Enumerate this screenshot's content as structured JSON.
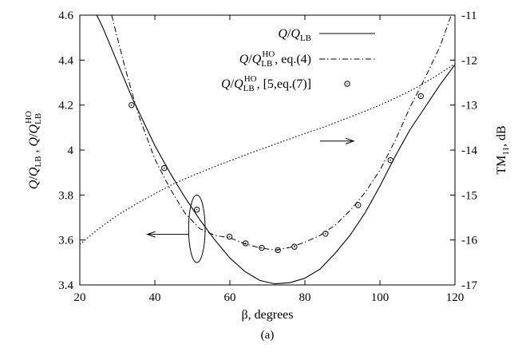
{
  "chart_data": {
    "type": "line",
    "caption": "(a)",
    "xlabel": "β, degrees",
    "ylabel_left": "Q/Q_LB , Q/Q_LB^HO",
    "ylabel_right": "TM11, dB",
    "xlim": [
      20,
      120
    ],
    "ylim_left": [
      3.4,
      4.6
    ],
    "ylim_right": [
      -17,
      -11
    ],
    "x_ticks": [
      "20",
      "40",
      "60",
      "80",
      "100",
      "120"
    ],
    "y_left_ticks": [
      "3.4",
      "3.6",
      "3.8",
      "4",
      "4.2",
      "4.4",
      "4.6"
    ],
    "y_right_ticks": [
      "-17",
      "-16",
      "-15",
      "-14",
      "-13",
      "-12",
      "-11"
    ],
    "legend_placement": "top-right",
    "grid": false,
    "series": [
      {
        "name": "Q/Q_LB",
        "axis": "left",
        "style": "solid",
        "x": [
          24.5,
          26,
          28,
          30,
          32,
          34,
          36,
          40,
          44,
          48,
          52,
          56,
          60,
          64,
          68,
          72,
          76,
          80,
          84,
          88,
          92,
          96,
          100,
          104,
          108,
          112,
          116,
          120
        ],
        "y": [
          4.6,
          4.55,
          4.47,
          4.39,
          4.31,
          4.23,
          4.16,
          4.02,
          3.9,
          3.79,
          3.69,
          3.6,
          3.52,
          3.46,
          3.42,
          3.405,
          3.41,
          3.43,
          3.47,
          3.54,
          3.62,
          3.72,
          3.84,
          3.97,
          4.09,
          4.19,
          4.29,
          4.38
        ]
      },
      {
        "name": "Q/Q_LB^HO, eq.(4)",
        "axis": "left",
        "style": "dash-dot",
        "x": [
          28.5,
          30,
          32,
          34,
          36,
          40,
          44,
          48,
          52,
          56,
          60,
          64,
          68,
          72,
          76,
          80,
          84,
          88,
          92,
          96,
          100,
          104,
          108,
          112,
          116,
          119
        ],
        "y": [
          4.6,
          4.5,
          4.37,
          4.25,
          4.14,
          3.96,
          3.83,
          3.72,
          3.65,
          3.62,
          3.61,
          3.583,
          3.565,
          3.555,
          3.567,
          3.59,
          3.62,
          3.665,
          3.73,
          3.81,
          3.91,
          4.04,
          4.19,
          4.32,
          4.46,
          4.6
        ]
      },
      {
        "name": "Q/Q_LB^HO, [5,eq.(7)]",
        "axis": "left",
        "style": "markers",
        "x": [
          33.8,
          42.5,
          51.2,
          59.9,
          64.2,
          68.5,
          72.8,
          77.2,
          85.5,
          94.2,
          102.8,
          110.9
        ],
        "y": [
          4.2,
          3.92,
          3.735,
          3.615,
          3.585,
          3.565,
          3.555,
          3.57,
          3.628,
          3.755,
          3.955,
          4.24
        ]
      },
      {
        "name": "TM11",
        "axis": "right",
        "style": "dotted",
        "x": [
          20,
          25,
          30,
          35,
          40,
          45,
          50,
          55,
          60,
          65,
          70,
          75,
          80,
          85,
          90,
          95,
          100,
          105,
          110,
          115,
          120
        ],
        "y": [
          -16.1,
          -15.75,
          -15.45,
          -15.2,
          -14.97,
          -14.75,
          -14.57,
          -14.4,
          -14.24,
          -14.08,
          -13.93,
          -13.78,
          -13.63,
          -13.49,
          -13.33,
          -13.17,
          -13.0,
          -12.81,
          -12.6,
          -12.35,
          -12.08
        ]
      }
    ],
    "annotations": [
      {
        "type": "arrow",
        "from": [
          84,
          -13.8
        ],
        "to": [
          93,
          -13.8
        ],
        "axis": "right",
        "meaning": "dotted curve reads right axis"
      },
      {
        "type": "ellipse",
        "center": [
          51.2,
          3.65
        ],
        "rx": 2.2,
        "ry": 0.15,
        "axis": "left"
      },
      {
        "type": "arrow",
        "from": [
          49,
          3.625
        ],
        "to": [
          38,
          3.625
        ],
        "axis": "left",
        "meaning": "circled curves read left axis"
      }
    ]
  },
  "colors": {
    "ink": "#000000",
    "background": "#ffffff"
  }
}
